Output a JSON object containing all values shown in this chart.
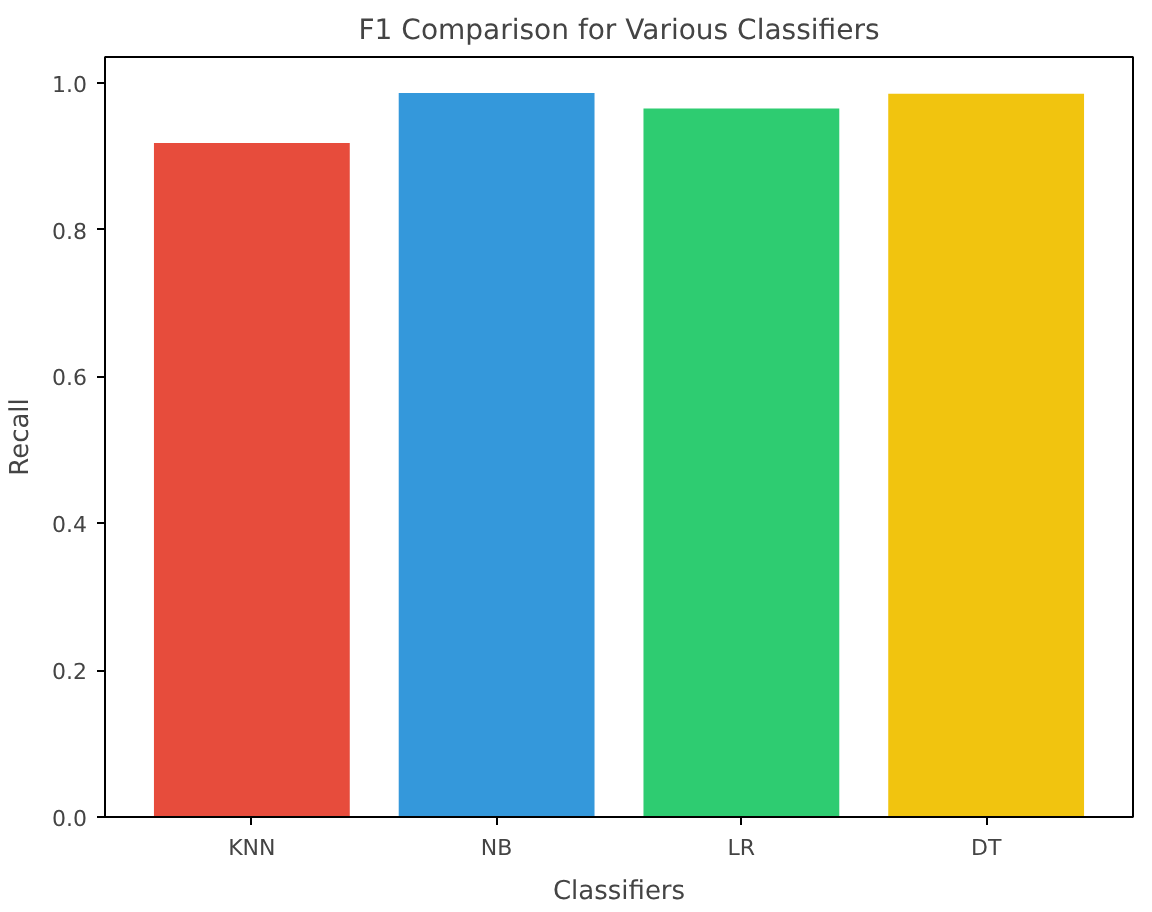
{
  "chart_data": {
    "type": "bar",
    "title": "F1 Comparison for Various Classifiers",
    "xlabel": "Classifiers",
    "ylabel": "Recall",
    "categories": [
      "KNN",
      "NB",
      "LR",
      "DT"
    ],
    "values": [
      0.918,
      0.986,
      0.965,
      0.985
    ],
    "colors": [
      "#e74c3c",
      "#3498db",
      "#2ecc71",
      "#f1c40f"
    ],
    "ylim": [
      0,
      1.035
    ],
    "yticks": [
      {
        "value": 0,
        "label": "0.0"
      },
      {
        "value": 0.2,
        "label": "0.2"
      },
      {
        "value": 0.4,
        "label": "0.4"
      },
      {
        "value": 0.6,
        "label": "0.6"
      },
      {
        "value": 0.8,
        "label": "0.8"
      },
      {
        "value": 1.0,
        "label": "1.0"
      }
    ],
    "grid": false
  }
}
